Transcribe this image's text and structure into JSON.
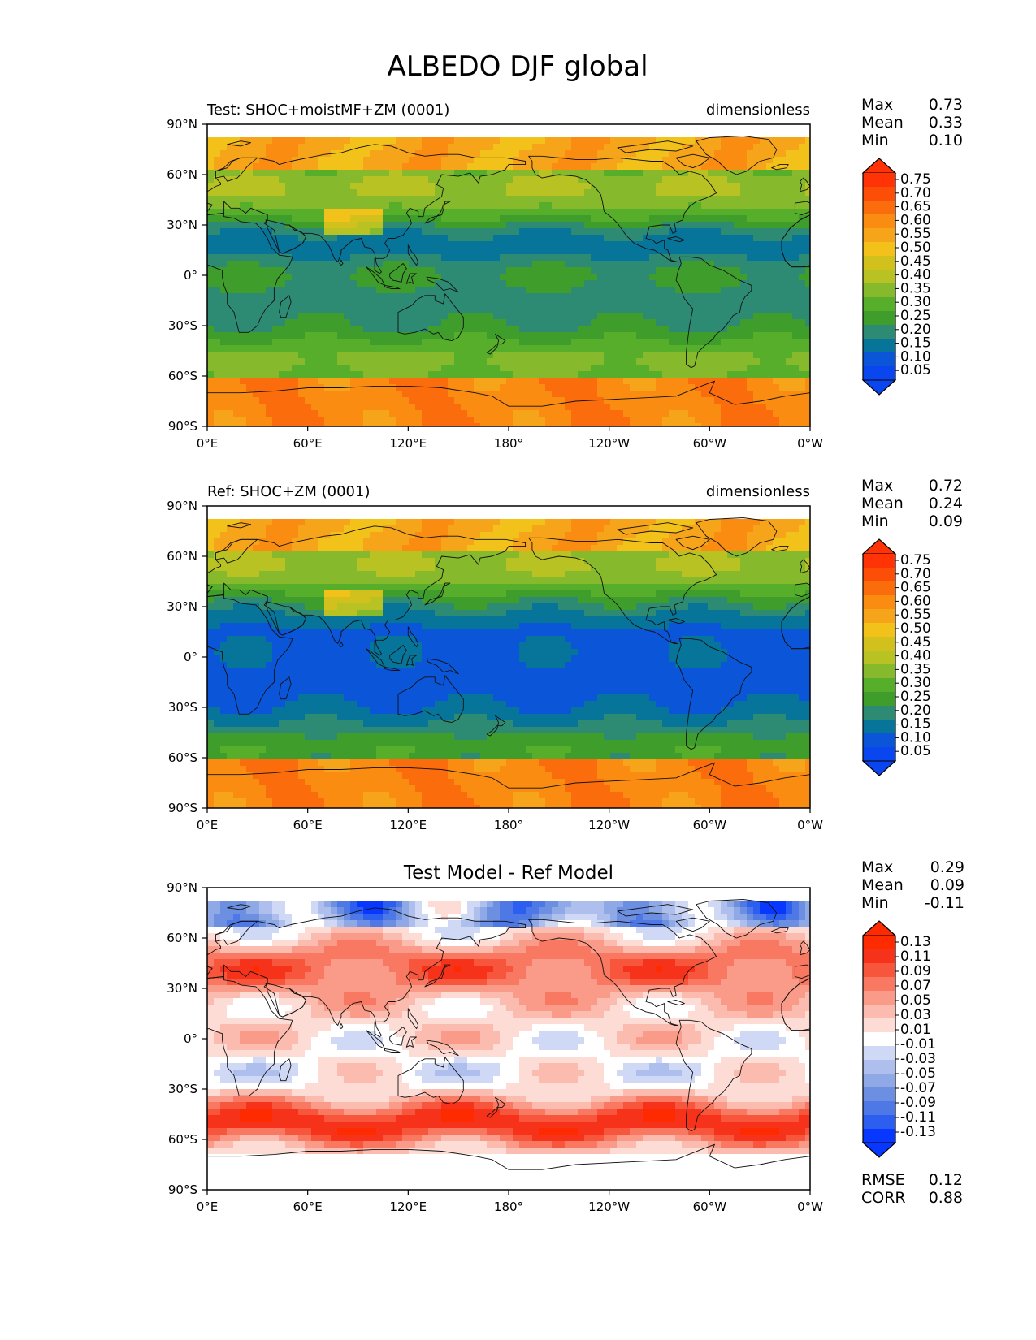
{
  "title": "ALBEDO DJF global",
  "x_ticks": [
    "0°E",
    "60°E",
    "120°E",
    "180°",
    "120°W",
    "60°W",
    "0°W"
  ],
  "y_ticks": [
    "90°N",
    "60°N",
    "30°N",
    "0°",
    "30°S",
    "60°S",
    "90°S"
  ],
  "colors": {
    "albedo_levels": [
      "#0a46f0",
      "#0a55d8",
      "#07749a",
      "#2e8b73",
      "#3f9d2c",
      "#57ae2a",
      "#86b92c",
      "#b8c323",
      "#d2c01d",
      "#f2c21b",
      "#f6a51a",
      "#fa8c12",
      "#fb6d0c",
      "#fd4e07",
      "#ff3305"
    ],
    "diff_levels": [
      "#0838ff",
      "#2c5ff0",
      "#4d78e6",
      "#6c8fe2",
      "#8ea9e6",
      "#aebfed",
      "#cfd9f5",
      "#ffffff",
      "#fcdcd5",
      "#fbbcaf",
      "#fa9a88",
      "#f97862",
      "#f8553d",
      "#f6321b",
      "#ff2b00"
    ]
  },
  "chart_data": [
    {
      "type": "heatmap",
      "subtitle_left": "Test: SHOC+moistMF+ZM (0001)",
      "subtitle_right": "dimensionless",
      "stats": [
        {
          "label": "Max",
          "value": "0.73"
        },
        {
          "label": "Mean",
          "value": "0.33"
        },
        {
          "label": "Min",
          "value": "0.10"
        }
      ],
      "colorbar_ticks": [
        "0.75",
        "0.70",
        "0.65",
        "0.60",
        "0.55",
        "0.50",
        "0.45",
        "0.40",
        "0.35",
        "0.30",
        "0.25",
        "0.20",
        "0.15",
        "0.10",
        "0.05"
      ],
      "xlim": [
        0,
        360
      ],
      "ylim": [
        -90,
        90
      ]
    },
    {
      "type": "heatmap",
      "subtitle_left": "Ref: SHOC+ZM (0001)",
      "subtitle_right": "dimensionless",
      "stats": [
        {
          "label": "Max",
          "value": "0.72"
        },
        {
          "label": "Mean",
          "value": "0.24"
        },
        {
          "label": "Min",
          "value": "0.09"
        }
      ],
      "colorbar_ticks": [
        "0.75",
        "0.70",
        "0.65",
        "0.60",
        "0.55",
        "0.50",
        "0.45",
        "0.40",
        "0.35",
        "0.30",
        "0.25",
        "0.20",
        "0.15",
        "0.10",
        "0.05"
      ],
      "xlim": [
        0,
        360
      ],
      "ylim": [
        -90,
        90
      ]
    },
    {
      "type": "heatmap",
      "subtitle_center": "Test Model - Ref Model",
      "stats": [
        {
          "label": "Max",
          "value": "0.29"
        },
        {
          "label": "Mean",
          "value": "0.09"
        },
        {
          "label": "Min",
          "value": "-0.11"
        }
      ],
      "colorbar_ticks": [
        "0.13",
        "0.11",
        "0.09",
        "0.07",
        "0.05",
        "0.03",
        "0.01",
        "-0.01",
        "-0.03",
        "-0.05",
        "-0.07",
        "-0.09",
        "-0.11",
        "-0.13"
      ],
      "metrics": [
        {
          "label": "RMSE",
          "value": "0.12"
        },
        {
          "label": "CORR",
          "value": "0.88"
        }
      ],
      "xlim": [
        0,
        360
      ],
      "ylim": [
        -90,
        90
      ]
    }
  ]
}
